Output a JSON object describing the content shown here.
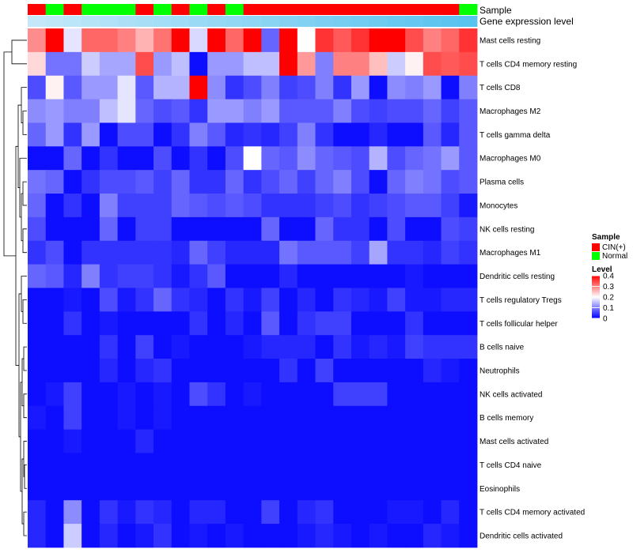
{
  "chart_data": {
    "type": "heatmap",
    "title": "",
    "annotation_tracks": [
      {
        "name": "Sample",
        "values": [
          "CIN(+)",
          "Normal",
          "CIN(+)",
          "Normal",
          "Normal",
          "Normal",
          "CIN(+)",
          "Normal",
          "CIN(+)",
          "Normal",
          "CIN(+)",
          "Normal",
          "CIN(+)",
          "CIN(+)",
          "CIN(+)",
          "CIN(+)",
          "CIN(+)",
          "CIN(+)",
          "CIN(+)",
          "CIN(+)",
          "CIN(+)",
          "CIN(+)",
          "CIN(+)",
          "CIN(+)",
          "Normal"
        ]
      },
      {
        "name": "Gene expression level",
        "values": [
          0.02,
          0.06,
          0.1,
          0.14,
          0.18,
          0.22,
          0.26,
          0.3,
          0.34,
          0.38,
          0.42,
          0.46,
          0.5,
          0.54,
          0.58,
          0.62,
          0.66,
          0.7,
          0.74,
          0.78,
          0.82,
          0.86,
          0.9,
          0.94,
          0.98
        ]
      }
    ],
    "rows": [
      "Mast cells resting",
      "T cells CD4 memory resting",
      "T cells CD8",
      "Macrophages M2",
      "T cells gamma delta",
      "Macrophages M0",
      "Plasma cells",
      "Monocytes",
      "NK cells resting",
      "Macrophages M1",
      "Dendritic cells resting",
      "T cells regulatory  Tregs",
      "T cells follicular helper",
      "B cells naive",
      "Neutrophils",
      "NK cells activated",
      "B cells memory",
      "Mast cells activated",
      "T cells CD4 naive",
      "Eosinophils",
      "T cells CD4 memory activated",
      "Dendritic cells activated"
    ],
    "values": [
      [
        0.29,
        0.4,
        0.18,
        0.32,
        0.32,
        0.3,
        0.26,
        0.31,
        0.4,
        0.17,
        0.4,
        0.32,
        0.4,
        0.08,
        0.4,
        0.2,
        0.36,
        0.33,
        0.36,
        0.4,
        0.4,
        0.34,
        0.3,
        0.32,
        0.36
      ],
      [
        0.23,
        0.09,
        0.09,
        0.16,
        0.13,
        0.13,
        0.34,
        0.12,
        0.15,
        0.01,
        0.12,
        0.12,
        0.15,
        0.15,
        0.4,
        0.28,
        0.1,
        0.3,
        0.3,
        0.25,
        0.16,
        0.21,
        0.34,
        0.33,
        0.34
      ],
      [
        0.06,
        0.21,
        0.07,
        0.12,
        0.12,
        0.18,
        0.07,
        0.14,
        0.14,
        0.4,
        0.11,
        0.04,
        0.06,
        0.1,
        0.05,
        0.06,
        0.1,
        0.04,
        0.12,
        0.01,
        0.11,
        0.1,
        0.12,
        0.01,
        0.1
      ],
      [
        0.11,
        0.12,
        0.1,
        0.1,
        0.15,
        0.18,
        0.08,
        0.06,
        0.07,
        0.04,
        0.12,
        0.12,
        0.1,
        0.12,
        0.07,
        0.07,
        0.07,
        0.1,
        0.06,
        0.05,
        0.06,
        0.06,
        0.08,
        0.05,
        0.07
      ],
      [
        0.08,
        0.12,
        0.04,
        0.12,
        0.01,
        0.06,
        0.06,
        0.01,
        0.04,
        0.1,
        0.07,
        0.03,
        0.04,
        0.03,
        0.05,
        0.1,
        0.04,
        0.01,
        0.01,
        0.03,
        0.01,
        0.01,
        0.07,
        0.03,
        0.07
      ],
      [
        0.01,
        0.01,
        0.08,
        0.01,
        0.04,
        0.01,
        0.01,
        0.06,
        0.01,
        0.04,
        0.01,
        0.06,
        0.2,
        0.08,
        0.07,
        0.11,
        0.08,
        0.07,
        0.06,
        0.14,
        0.06,
        0.08,
        0.09,
        0.12,
        0.07
      ],
      [
        0.09,
        0.08,
        0.01,
        0.04,
        0.06,
        0.06,
        0.07,
        0.05,
        0.08,
        0.04,
        0.04,
        0.08,
        0.04,
        0.06,
        0.08,
        0.05,
        0.08,
        0.1,
        0.06,
        0.01,
        0.08,
        0.1,
        0.09,
        0.06,
        0.07
      ],
      [
        0.08,
        0.01,
        0.04,
        0.01,
        0.1,
        0.05,
        0.05,
        0.05,
        0.08,
        0.07,
        0.06,
        0.07,
        0.06,
        0.04,
        0.04,
        0.04,
        0.05,
        0.06,
        0.04,
        0.05,
        0.06,
        0.07,
        0.07,
        0.05,
        0.02
      ],
      [
        0.06,
        0.01,
        0.01,
        0.01,
        0.08,
        0.01,
        0.05,
        0.05,
        0.01,
        0.01,
        0.01,
        0.01,
        0.01,
        0.08,
        0.01,
        0.01,
        0.08,
        0.04,
        0.04,
        0.01,
        0.06,
        0.01,
        0.01,
        0.06,
        0.05
      ],
      [
        0.04,
        0.06,
        0.01,
        0.04,
        0.04,
        0.04,
        0.04,
        0.04,
        0.03,
        0.08,
        0.05,
        0.03,
        0.03,
        0.03,
        0.09,
        0.07,
        0.07,
        0.07,
        0.05,
        0.13,
        0.04,
        0.04,
        0.03,
        0.05,
        0.04
      ],
      [
        0.08,
        0.07,
        0.03,
        0.1,
        0.04,
        0.05,
        0.05,
        0.04,
        0.02,
        0.04,
        0.07,
        0.01,
        0.01,
        0.01,
        0.03,
        0.01,
        0.01,
        0.01,
        0.01,
        0.01,
        0.01,
        0.02,
        0.01,
        0.01,
        0.01
      ],
      [
        0.01,
        0.01,
        0.02,
        0.01,
        0.06,
        0.02,
        0.04,
        0.08,
        0.04,
        0.03,
        0.01,
        0.04,
        0.02,
        0.05,
        0.01,
        0.03,
        0.01,
        0.04,
        0.03,
        0.02,
        0.05,
        0.02,
        0.02,
        0.03,
        0.03
      ],
      [
        0.01,
        0.01,
        0.04,
        0.01,
        0.02,
        0.01,
        0.01,
        0.01,
        0.01,
        0.04,
        0.01,
        0.03,
        0.01,
        0.07,
        0.01,
        0.04,
        0.05,
        0.05,
        0.01,
        0.01,
        0.01,
        0.04,
        0.01,
        0.01,
        0.01
      ],
      [
        0.01,
        0.01,
        0.01,
        0.01,
        0.04,
        0.01,
        0.05,
        0.01,
        0.02,
        0.01,
        0.01,
        0.01,
        0.02,
        0.03,
        0.03,
        0.03,
        0.01,
        0.04,
        0.02,
        0.03,
        0.02,
        0.05,
        0.04,
        0.04,
        0.04
      ],
      [
        0.01,
        0.01,
        0.01,
        0.01,
        0.03,
        0.01,
        0.03,
        0.04,
        0.01,
        0.01,
        0.01,
        0.01,
        0.01,
        0.01,
        0.04,
        0.01,
        0.05,
        0.01,
        0.01,
        0.01,
        0.01,
        0.01,
        0.03,
        0.02,
        0.01
      ],
      [
        0.01,
        0.02,
        0.05,
        0.01,
        0.01,
        0.02,
        0.01,
        0.02,
        0.01,
        0.06,
        0.04,
        0.01,
        0.02,
        0.01,
        0.01,
        0.01,
        0.01,
        0.05,
        0.05,
        0.05,
        0.01,
        0.01,
        0.01,
        0.01,
        0.01
      ],
      [
        0.02,
        0.01,
        0.05,
        0.01,
        0.01,
        0.02,
        0.01,
        0.02,
        0.01,
        0.01,
        0.01,
        0.01,
        0.01,
        0.01,
        0.01,
        0.01,
        0.01,
        0.01,
        0.01,
        0.01,
        0.01,
        0.01,
        0.01,
        0.01,
        0.01
      ],
      [
        0.01,
        0.01,
        0.02,
        0.01,
        0.01,
        0.01,
        0.03,
        0.01,
        0.01,
        0.01,
        0.01,
        0.01,
        0.01,
        0.01,
        0.01,
        0.01,
        0.01,
        0.01,
        0.01,
        0.01,
        0.01,
        0.01,
        0.01,
        0.01,
        0.01
      ],
      [
        0.01,
        0.01,
        0.01,
        0.01,
        0.01,
        0.01,
        0.01,
        0.01,
        0.01,
        0.01,
        0.01,
        0.01,
        0.01,
        0.01,
        0.01,
        0.01,
        0.01,
        0.01,
        0.01,
        0.01,
        0.01,
        0.01,
        0.01,
        0.01,
        0.01
      ],
      [
        0.01,
        0.01,
        0.01,
        0.01,
        0.01,
        0.01,
        0.01,
        0.01,
        0.01,
        0.01,
        0.01,
        0.01,
        0.01,
        0.01,
        0.01,
        0.01,
        0.01,
        0.01,
        0.01,
        0.01,
        0.01,
        0.01,
        0.01,
        0.01,
        0.01
      ],
      [
        0.03,
        0.01,
        0.11,
        0.01,
        0.04,
        0.02,
        0.04,
        0.03,
        0.01,
        0.03,
        0.03,
        0.01,
        0.01,
        0.05,
        0.01,
        0.03,
        0.04,
        0.01,
        0.01,
        0.01,
        0.02,
        0.02,
        0.01,
        0.03,
        0.01
      ],
      [
        0.03,
        0.01,
        0.16,
        0.01,
        0.03,
        0.01,
        0.02,
        0.04,
        0.01,
        0.02,
        0.01,
        0.02,
        0.01,
        0.01,
        0.01,
        0.02,
        0.03,
        0.02,
        0.01,
        0.02,
        0.01,
        0.01,
        0.03,
        0.02,
        0.01
      ]
    ],
    "color_scale": {
      "min": 0,
      "mid": 0.2,
      "max": 0.4,
      "low_color": "#0000ff",
      "mid_color": "#ffffff",
      "high_color": "#ff0000"
    },
    "legends": {
      "sample": {
        "title": "Sample",
        "items": [
          {
            "label": "CIN(+)",
            "color": "#ff0000"
          },
          {
            "label": "Normal",
            "color": "#00ff00"
          }
        ]
      },
      "level": {
        "title": "Level",
        "ticks": [
          {
            "value": 0.4,
            "label": "0.4"
          },
          {
            "value": 0.3,
            "label": "0.3"
          },
          {
            "value": 0.2,
            "label": "0.2"
          },
          {
            "value": 0.1,
            "label": "0.1"
          },
          {
            "value": 0,
            "label": "0"
          }
        ]
      }
    },
    "annotation_colors": {
      "expr_low": "#c6e9f9",
      "expr_high": "#56c2ee"
    },
    "legend_position": "right",
    "grid": false
  }
}
